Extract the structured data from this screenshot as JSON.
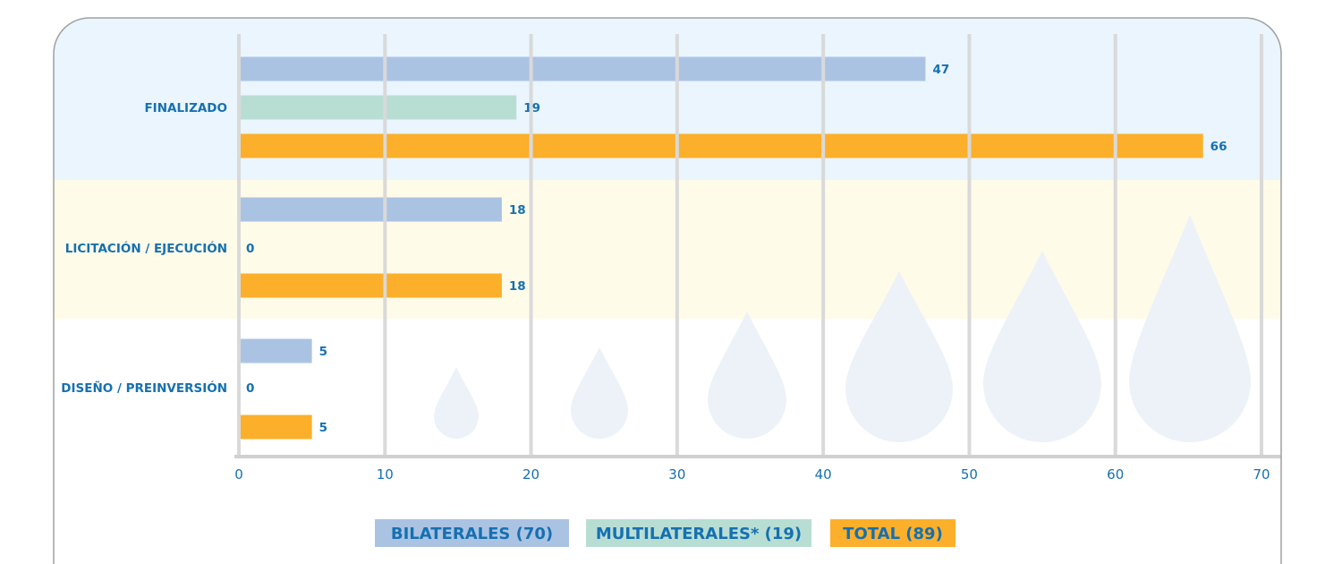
{
  "chart_data": {
    "type": "bar",
    "orientation": "horizontal",
    "categories": [
      "FINALIZADO",
      "LICITACIÓN / EJECUCIÓN",
      "DISEÑO / PREINVERSIÓN"
    ],
    "series": [
      {
        "name": "BILATERALES (70)",
        "color": "#abc3e3",
        "values": [
          47,
          18,
          5
        ]
      },
      {
        "name": "MULTILATERALES* (19)",
        "color": "#b8ded4",
        "values": [
          19,
          0,
          0
        ]
      },
      {
        "name": "TOTAL (89)",
        "color": "#fcaf2a",
        "values": [
          66,
          18,
          5
        ]
      }
    ],
    "xlim": [
      0,
      70
    ],
    "xticks": [
      0,
      10,
      20,
      30,
      40,
      50,
      60,
      70
    ],
    "grid": true,
    "legend_placement": "bottom-center",
    "band_colors": [
      "#eaf5fd",
      "#fffbe9",
      "#ffffff"
    ],
    "label_color": "#1670b0"
  }
}
